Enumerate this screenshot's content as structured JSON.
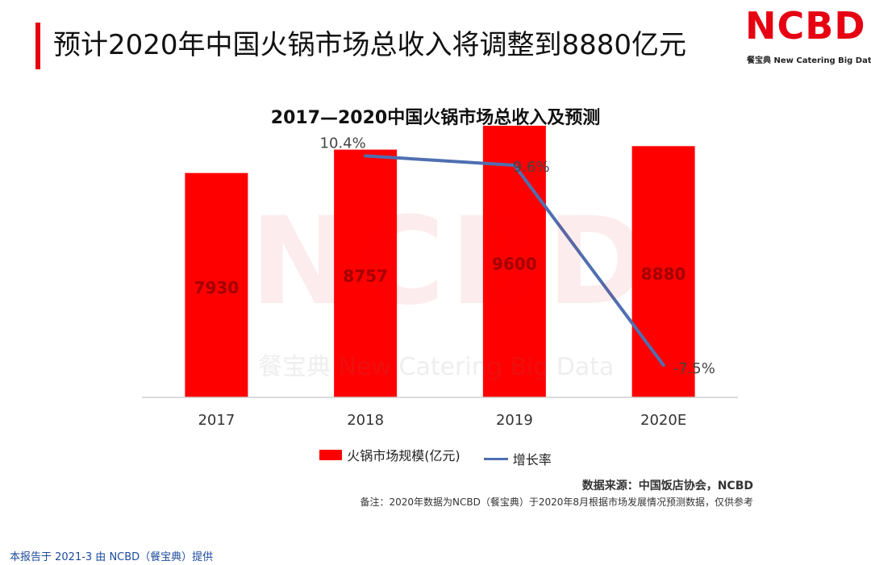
{
  "header": {
    "title": "预计2020年中国火锅市场总收入将调整到8880亿元"
  },
  "logo": {
    "main": "NCBD",
    "sub": "餐宝典 New Catering Big Data"
  },
  "watermark": {
    "main": "NCBD",
    "sub": "餐宝典 New Catering Big Data"
  },
  "colors": {
    "accent": "#e60012",
    "bar": "#ff0000",
    "line": "#4f6fb0"
  },
  "chart_data": {
    "type": "bar+line",
    "title": "2017—2020中国火锅市场总收入及预测",
    "categories": [
      "2017",
      "2018",
      "2019",
      "2020E"
    ],
    "series": [
      {
        "name": "火锅市场规模(亿元)",
        "type": "bar",
        "values": [
          7930,
          8757,
          9600,
          8880
        ],
        "labels": [
          "7930",
          "8757",
          "9600",
          "8880"
        ]
      },
      {
        "name": "增长率",
        "type": "line",
        "values": [
          null,
          10.4,
          9.6,
          -7.5
        ],
        "labels": [
          "",
          "10.4%",
          "9.6%",
          "-7.5%"
        ]
      }
    ],
    "legend_position": "bottom",
    "grid": false
  },
  "source": "数据来源：中国饭店协会，NCBD",
  "note": "备注：2020年数据为NCBD（餐宝典）于2020年8月根据市场发展情况预测数据，仅供参考",
  "footer": "本报告于 2021-3 由 NCBD（餐宝典）提供"
}
